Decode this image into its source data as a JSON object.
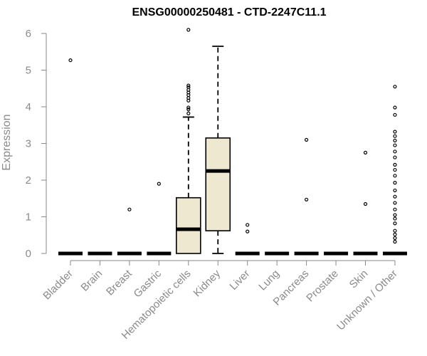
{
  "chart_data": {
    "type": "boxplot",
    "title": "ENSG00000250481 - CTD-2247C11.1",
    "ylabel": "Expression",
    "xlabel": "",
    "ylim": [
      0,
      6
    ],
    "yticks": [
      "0",
      "1",
      "2",
      "3",
      "4",
      "5",
      "6"
    ],
    "grid": false,
    "box_fill": "#efe8d0",
    "box_stroke": "#000000",
    "categories": [
      "Bladder",
      "Brain",
      "Breast",
      "Gastric",
      "Hematopoietic cells",
      "Kidney",
      "Liver",
      "Lung",
      "Pancreas",
      "Prostate",
      "Skin",
      "Unknown / Other"
    ],
    "boxes": [
      {
        "q1": 0,
        "median": 0,
        "q3": 0,
        "whisker_low": 0,
        "whisker_high": 0,
        "outliers": [
          5.27
        ]
      },
      {
        "q1": 0,
        "median": 0,
        "q3": 0,
        "whisker_low": 0,
        "whisker_high": 0,
        "outliers": []
      },
      {
        "q1": 0,
        "median": 0,
        "q3": 0,
        "whisker_low": 0,
        "whisker_high": 0,
        "outliers": [
          1.2
        ]
      },
      {
        "q1": 0,
        "median": 0,
        "q3": 0,
        "whisker_low": 0,
        "whisker_high": 0,
        "outliers": [
          1.9
        ]
      },
      {
        "q1": 0,
        "median": 0.66,
        "q3": 1.52,
        "whisker_low": 0,
        "whisker_high": 3.72,
        "outliers": [
          3.82,
          3.93,
          3.98,
          4.17,
          4.24,
          4.32,
          4.39,
          4.46,
          4.53,
          4.58,
          6.1
        ]
      },
      {
        "q1": 0.62,
        "median": 2.25,
        "q3": 3.15,
        "whisker_low": 0,
        "whisker_high": 5.65,
        "outliers": []
      },
      {
        "q1": 0,
        "median": 0,
        "q3": 0,
        "whisker_low": 0,
        "whisker_high": 0,
        "outliers": [
          0.6,
          0.78
        ]
      },
      {
        "q1": 0,
        "median": 0,
        "q3": 0,
        "whisker_low": 0,
        "whisker_high": 0,
        "outliers": []
      },
      {
        "q1": 0,
        "median": 0,
        "q3": 0,
        "whisker_low": 0,
        "whisker_high": 0,
        "outliers": [
          1.47,
          3.1
        ]
      },
      {
        "q1": 0,
        "median": 0,
        "q3": 0,
        "whisker_low": 0,
        "whisker_high": 0,
        "outliers": []
      },
      {
        "q1": 0,
        "median": 0,
        "q3": 0,
        "whisker_low": 0,
        "whisker_high": 0,
        "outliers": [
          1.35,
          2.75
        ]
      },
      {
        "q1": 0,
        "median": 0,
        "q3": 0,
        "whisker_low": 0,
        "whisker_high": 0,
        "outliers": [
          0.32,
          0.42,
          0.52,
          0.62,
          0.82,
          0.95,
          1.05,
          1.2,
          1.38,
          1.55,
          1.72,
          1.93,
          2.12,
          2.28,
          2.42,
          2.62,
          2.78,
          2.95,
          3.08,
          3.2,
          3.32,
          3.78,
          3.98,
          4.55
        ]
      }
    ]
  }
}
